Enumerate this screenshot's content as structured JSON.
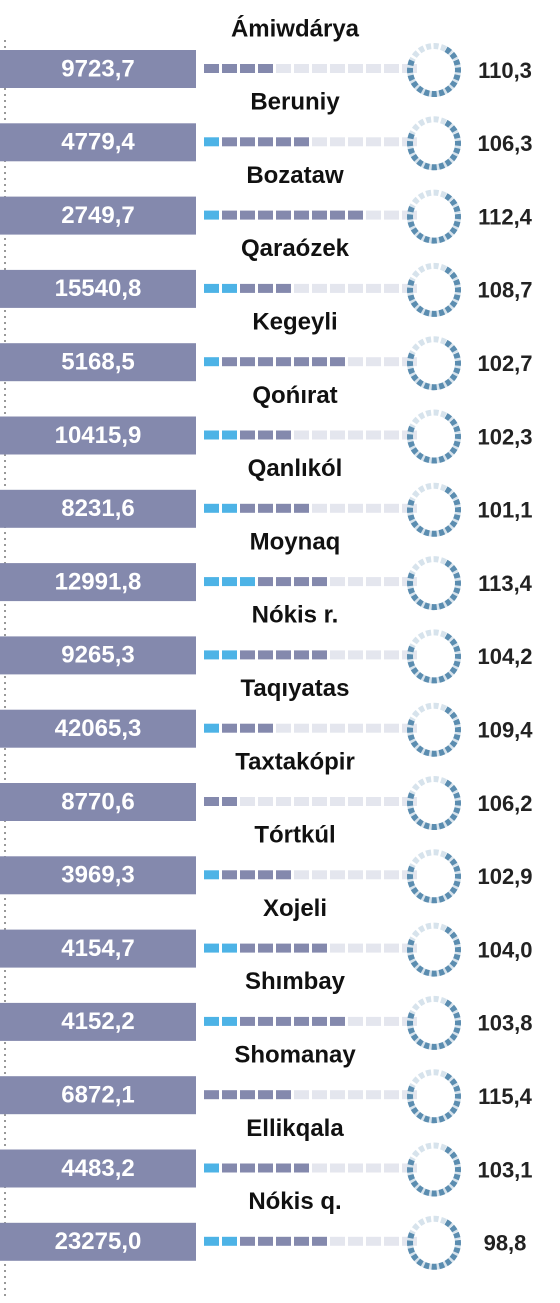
{
  "items": [
    {
      "name": "Ámiwdárya",
      "value": "9723,7",
      "index": "110,3"
    },
    {
      "name": "Beruniy",
      "value": "4779,4",
      "index": "106,3"
    },
    {
      "name": "Bozataw",
      "value": "2749,7",
      "index": "112,4"
    },
    {
      "name": "Qaraózek",
      "value": "15540,8",
      "index": "108,7"
    },
    {
      "name": "Kegeyli",
      "value": "5168,5",
      "index": "102,7"
    },
    {
      "name": "Qońırat",
      "value": "10415,9",
      "index": "102,3"
    },
    {
      "name": "Qanlıkól",
      "value": "8231,6",
      "index": "101,1"
    },
    {
      "name": "Moynaq",
      "value": "12991,8",
      "index": "113,4"
    },
    {
      "name": "Nókis r.",
      "value": "9265,3",
      "index": "104,2"
    },
    {
      "name": "Taqıyatas",
      "value": "42065,3",
      "index": "109,4"
    },
    {
      "name": "Taxtakópir",
      "value": "8770,6",
      "index": "106,2"
    },
    {
      "name": "Tórtkúl",
      "value": "3969,3",
      "index": "102,9"
    },
    {
      "name": "Xojeli",
      "value": "4154,7",
      "index": "104,0"
    },
    {
      "name": "Shımbay",
      "value": "4152,2",
      "index": "103,8"
    },
    {
      "name": "Shomanay",
      "value": "6872,1",
      "index": "115,4"
    },
    {
      "name": "Ellikqala",
      "value": "4483,2",
      "index": "103,1"
    },
    {
      "name": "Nókis q.",
      "value": "23275,0",
      "index": "98,8"
    }
  ]
}
